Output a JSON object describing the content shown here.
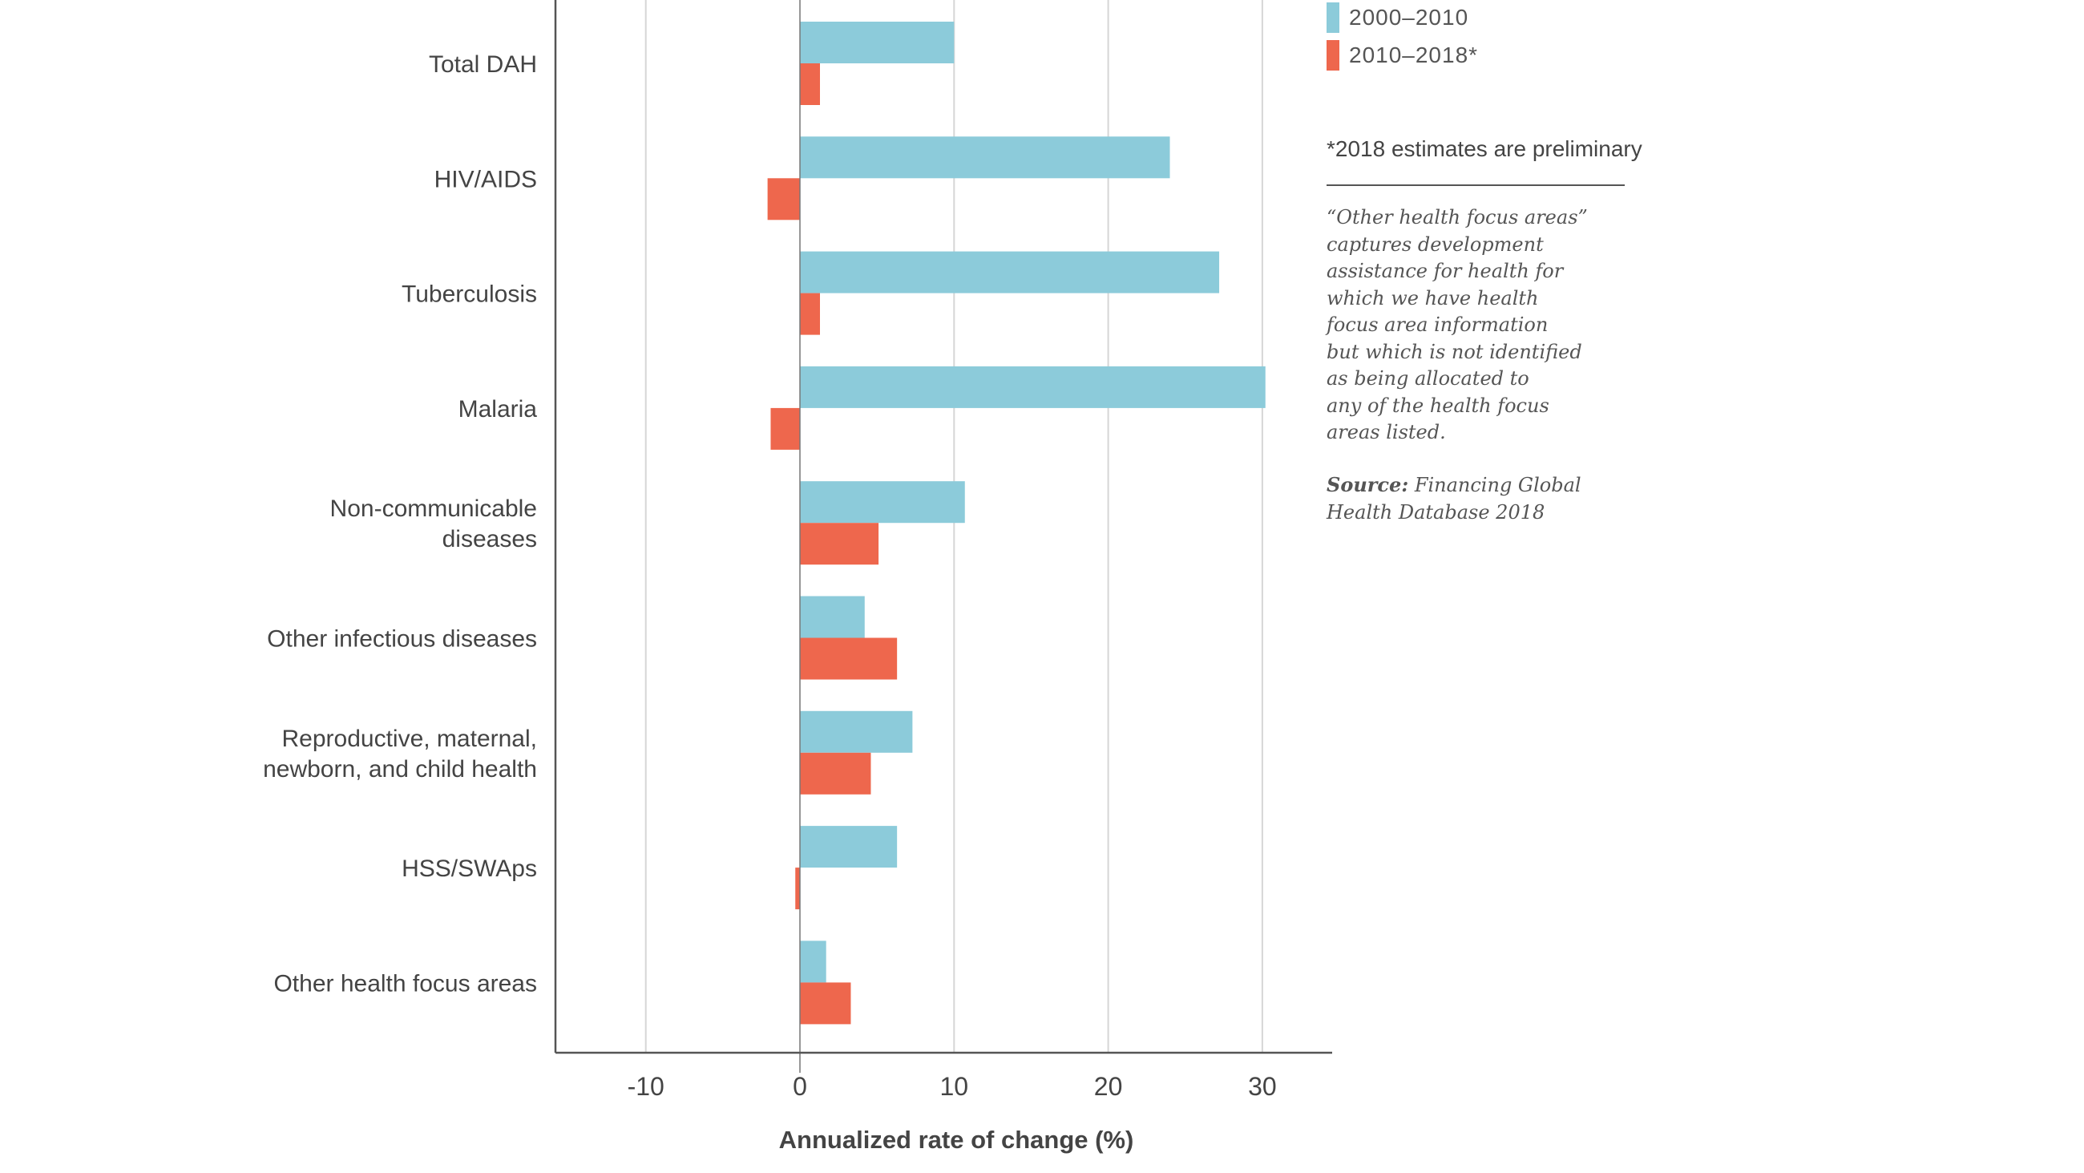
{
  "chart_data": {
    "type": "bar",
    "orientation": "horizontal",
    "categories": [
      "Total DAH",
      "HIV/AIDS",
      "Tuberculosis",
      "Malaria",
      "Non-communicable diseases",
      "Other infectious diseases",
      "Reproductive, maternal, newborn, and child health",
      "HSS/SWAps",
      "Other health focus areas"
    ],
    "category_lines": [
      [
        "Total DAH"
      ],
      [
        "HIV/AIDS"
      ],
      [
        "Tuberculosis"
      ],
      [
        "Malaria"
      ],
      [
        "Non-communicable",
        "diseases"
      ],
      [
        "Other infectious diseases"
      ],
      [
        "Reproductive, maternal,",
        "newborn, and child health"
      ],
      [
        "HSS/SWAps"
      ],
      [
        "Other health focus areas"
      ]
    ],
    "series": [
      {
        "name": "2000–2010",
        "color": "#8ccbda",
        "values": [
          10.0,
          24.0,
          27.2,
          30.2,
          10.7,
          4.2,
          7.3,
          6.3,
          1.7
        ]
      },
      {
        "name": "2010–2018*",
        "color": "#ee674d",
        "values": [
          1.3,
          -2.1,
          1.3,
          -1.9,
          5.1,
          6.3,
          4.6,
          -0.3,
          3.3
        ]
      }
    ],
    "xlabel": "Annualized rate of change (%)",
    "xlim": [
      -15.8,
      34.5
    ],
    "xticks": [
      -10,
      0,
      10,
      20,
      30
    ],
    "xtick_labels": [
      "-10",
      "0",
      "10",
      "20",
      "30"
    ],
    "grid": true,
    "legend_position": "top-right"
  },
  "sidebar": {
    "footnote": "*2018 estimates are preliminary",
    "note": "“Other health focus areas”\ncaptures development\nassistance for health for\nwhich we have health\nfocus area information\nbut which is not identified\nas being allocated to\nany of the health focus\nareas listed.",
    "source_label": "Source:",
    "source_text": " Financing Global Health Database 2018"
  }
}
